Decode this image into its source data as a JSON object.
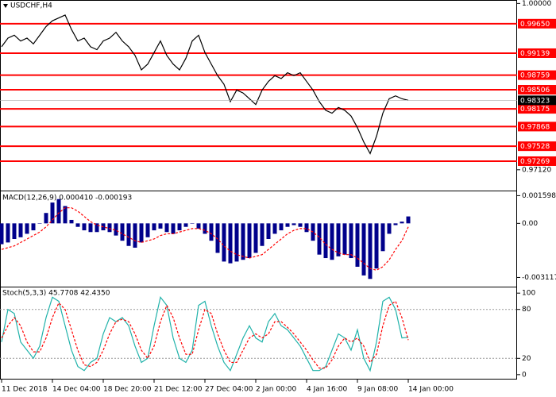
{
  "chart_data": [
    {
      "type": "line",
      "title": "USDCHF,H4",
      "categories": [
        "11 Dec 2018",
        null,
        null,
        null,
        null,
        null,
        null,
        null,
        "14 Dec 04:00",
        null,
        null,
        null,
        null,
        null,
        null,
        null,
        "18 Dec 20:00",
        null,
        null,
        null,
        null,
        null,
        null,
        null,
        "21 Dec 12:00",
        null,
        null,
        null,
        null,
        null,
        null,
        null,
        "27 Dec 04:00",
        null,
        null,
        null,
        null,
        null,
        null,
        null,
        "2 Jan 00:00",
        null,
        null,
        null,
        null,
        null,
        null,
        null,
        "4 Jan 16:00",
        null,
        null,
        null,
        null,
        null,
        null,
        null,
        "9 Jan 08:00",
        null,
        null,
        null,
        null,
        null,
        null,
        null,
        "14 Jan 00:00"
      ],
      "values": [
        0.9925,
        0.994,
        0.9945,
        0.9935,
        0.994,
        0.993,
        0.9945,
        0.996,
        0.997,
        0.9975,
        0.998,
        0.9955,
        0.9935,
        0.994,
        0.9925,
        0.992,
        0.9935,
        0.994,
        0.995,
        0.9935,
        0.9925,
        0.991,
        0.9885,
        0.9895,
        0.9915,
        0.9935,
        0.991,
        0.9895,
        0.9885,
        0.9905,
        0.9935,
        0.9945,
        0.9915,
        0.9895,
        0.9875,
        0.986,
        0.983,
        0.985,
        0.9845,
        0.9835,
        0.9825,
        0.985,
        0.9865,
        0.9875,
        0.987,
        0.988,
        0.9875,
        0.988,
        0.9865,
        0.985,
        0.983,
        0.9815,
        0.981,
        0.982,
        0.9815,
        0.9805,
        0.9785,
        0.976,
        0.974,
        0.977,
        0.981,
        0.9835,
        0.984,
        0.9835,
        0.98323
      ],
      "color": "#000000",
      "ylim": [
        0.9676,
        1.0006
      ],
      "yticks": [
        {
          "value": 1.0,
          "label": "1.00000"
        },
        {
          "value": 0.9712,
          "label": "0.97120"
        }
      ],
      "levels": [
        {
          "value": 0.9965,
          "label": "0.99650"
        },
        {
          "value": 0.99139,
          "label": "0.99139"
        },
        {
          "value": 0.98759,
          "label": "0.98759"
        },
        {
          "value": 0.98506,
          "label": "0.98506"
        },
        {
          "value": 0.98175,
          "label": "0.98175"
        },
        {
          "value": 0.97868,
          "label": "0.97868"
        },
        {
          "value": 0.97528,
          "label": "0.97528"
        },
        {
          "value": 0.97269,
          "label": "0.97269"
        }
      ],
      "level_color": "#ff0000",
      "last_price": {
        "value": 0.98323,
        "label": "0.98323"
      }
    },
    {
      "type": "bar",
      "title": "MACD(12,26,9) 0.000410 -0.000193",
      "values": [
        -0.0012,
        -0.0011,
        -0.0009,
        -0.0008,
        -0.0006,
        -0.0004,
        0.0,
        0.0006,
        0.0012,
        0.0014,
        0.001,
        0.0002,
        -0.0002,
        -0.0004,
        -0.0005,
        -0.0005,
        -0.0004,
        -0.0005,
        -0.0007,
        -0.001,
        -0.0013,
        -0.0014,
        -0.0011,
        -0.0008,
        -0.0004,
        -0.0003,
        -0.0005,
        -0.0006,
        -0.0004,
        -0.0002,
        0.0,
        -0.0003,
        -0.0006,
        -0.001,
        -0.0017,
        -0.0022,
        -0.0023,
        -0.0022,
        -0.0021,
        -0.002,
        -0.0017,
        -0.0013,
        -0.0009,
        -0.0006,
        -0.0004,
        -0.0002,
        -0.0001,
        -0.0002,
        -0.0005,
        -0.001,
        -0.0018,
        -0.002,
        -0.0021,
        -0.0019,
        -0.0018,
        -0.002,
        -0.0025,
        -0.003,
        -0.0032,
        -0.0026,
        -0.0016,
        -0.0006,
        -0.0001,
        0.0001,
        0.0004
      ],
      "color": "#00008b",
      "signal": [
        -0.0015,
        -0.0014,
        -0.0013,
        -0.0011,
        -0.0009,
        -0.0007,
        -0.0005,
        -0.0002,
        0.0002,
        0.0006,
        0.0009,
        0.0009,
        0.0007,
        0.0004,
        0.0001,
        -0.0001,
        -0.0002,
        -0.0003,
        -0.0004,
        -0.0006,
        -0.0008,
        -0.001,
        -0.0011,
        -0.001,
        -0.0009,
        -0.0007,
        -0.0006,
        -0.0006,
        -0.0005,
        -0.0004,
        -0.0003,
        -0.0003,
        -0.0004,
        -0.0006,
        -0.0009,
        -0.0013,
        -0.0016,
        -0.0018,
        -0.0019,
        -0.002,
        -0.0019,
        -0.0018,
        -0.0015,
        -0.0012,
        -0.0009,
        -0.0006,
        -0.0004,
        -0.0003,
        -0.0003,
        -0.0005,
        -0.0008,
        -0.0012,
        -0.0015,
        -0.0017,
        -0.0018,
        -0.0018,
        -0.002,
        -0.0023,
        -0.0026,
        -0.0027,
        -0.0025,
        -0.0021,
        -0.0015,
        -0.001,
        -0.0002
      ],
      "signal_color": "#ff0000",
      "ylim": [
        -0.0036,
        0.0018
      ],
      "yticks": [
        {
          "value": 0.001598,
          "label": "0.001598"
        },
        {
          "value": 0,
          "label": "0.00"
        },
        {
          "value": -0.003117,
          "label": "-0.003117"
        }
      ]
    },
    {
      "type": "line",
      "title": "Stoch(5,3,3) 45.7708 42.4350",
      "values": [
        40,
        80,
        75,
        40,
        30,
        20,
        35,
        70,
        95,
        90,
        60,
        30,
        10,
        5,
        15,
        20,
        50,
        70,
        65,
        70,
        60,
        35,
        15,
        20,
        60,
        95,
        85,
        45,
        20,
        15,
        30,
        85,
        90,
        60,
        35,
        15,
        5,
        25,
        45,
        60,
        45,
        40,
        65,
        75,
        60,
        55,
        45,
        35,
        20,
        5,
        5,
        10,
        30,
        50,
        45,
        30,
        55,
        20,
        5,
        40,
        90,
        95,
        80,
        45,
        45.7708
      ],
      "color": "#20b2aa",
      "signal": [
        45,
        60,
        70,
        60,
        40,
        28,
        28,
        45,
        70,
        88,
        80,
        55,
        30,
        12,
        10,
        15,
        30,
        50,
        65,
        68,
        65,
        50,
        30,
        20,
        35,
        65,
        85,
        70,
        45,
        25,
        25,
        55,
        80,
        75,
        50,
        30,
        15,
        15,
        30,
        45,
        50,
        45,
        50,
        65,
        65,
        58,
        50,
        40,
        30,
        18,
        8,
        8,
        18,
        35,
        45,
        40,
        45,
        35,
        15,
        25,
        60,
        85,
        90,
        70,
        42.435
      ],
      "signal_color": "#ff0000",
      "ylim": [
        -6,
        107
      ],
      "yticks": [
        100,
        80,
        20,
        0
      ],
      "levels": [
        80,
        20
      ]
    }
  ]
}
